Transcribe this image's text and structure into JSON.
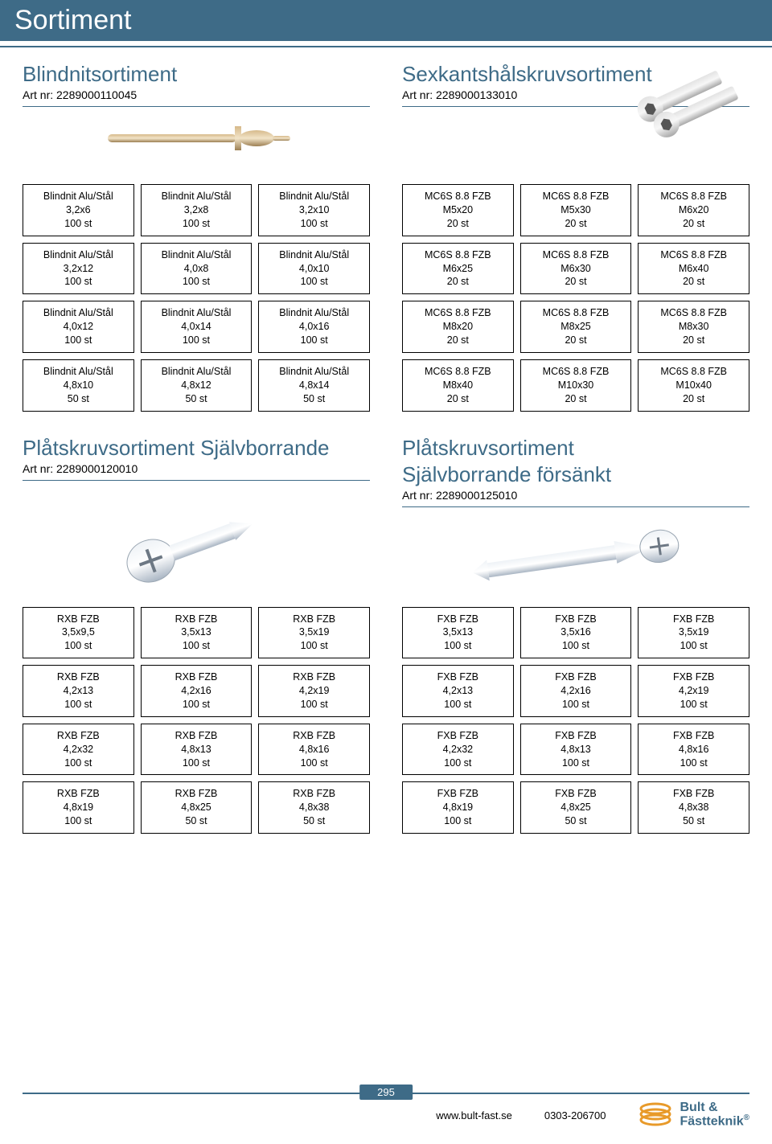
{
  "header": {
    "title": "Sortiment"
  },
  "page_number": "295",
  "footer": {
    "website": "www.bult-fast.se",
    "phone": "0303-206700",
    "logo_line1": "Bult &",
    "logo_line2": "Fästteknik"
  },
  "colors": {
    "brand": "#3e6b87",
    "border": "#000000"
  },
  "sections": {
    "blindnit": {
      "title": "Blindnitsortiment",
      "artnr": "Art nr: 2289000110045",
      "cells": [
        [
          "Blindnit Alu/Stål",
          "3,2x6",
          "100 st"
        ],
        [
          "Blindnit Alu/Stål",
          "3,2x8",
          "100 st"
        ],
        [
          "Blindnit Alu/Stål",
          "3,2x10",
          "100 st"
        ],
        [
          "Blindnit Alu/Stål",
          "3,2x12",
          "100 st"
        ],
        [
          "Blindnit Alu/Stål",
          "4,0x8",
          "100 st"
        ],
        [
          "Blindnit Alu/Stål",
          "4,0x10",
          "100 st"
        ],
        [
          "Blindnit Alu/Stål",
          "4,0x12",
          "100 st"
        ],
        [
          "Blindnit Alu/Stål",
          "4,0x14",
          "100 st"
        ],
        [
          "Blindnit Alu/Stål",
          "4,0x16",
          "100 st"
        ],
        [
          "Blindnit Alu/Stål",
          "4,8x10",
          "50 st"
        ],
        [
          "Blindnit Alu/Stål",
          "4,8x12",
          "50 st"
        ],
        [
          "Blindnit Alu/Stål",
          "4,8x14",
          "50 st"
        ]
      ]
    },
    "sexkant": {
      "title": "Sexkantshålskruvsortiment",
      "artnr": "Art nr: 2289000133010",
      "cells": [
        [
          "MC6S 8.8 FZB",
          "M5x20",
          "20 st"
        ],
        [
          "MC6S 8.8 FZB",
          "M5x30",
          "20 st"
        ],
        [
          "MC6S 8.8 FZB",
          "M6x20",
          "20 st"
        ],
        [
          "MC6S 8.8 FZB",
          "M6x25",
          "20 st"
        ],
        [
          "MC6S 8.8 FZB",
          "M6x30",
          "20 st"
        ],
        [
          "MC6S 8.8 FZB",
          "M6x40",
          "20 st"
        ],
        [
          "MC6S 8.8 FZB",
          "M8x20",
          "20 st"
        ],
        [
          "MC6S 8.8 FZB",
          "M8x25",
          "20 st"
        ],
        [
          "MC6S 8.8 FZB",
          "M8x30",
          "20 st"
        ],
        [
          "MC6S 8.8 FZB",
          "M8x40",
          "20 st"
        ],
        [
          "MC6S 8.8 FZB",
          "M10x30",
          "20 st"
        ],
        [
          "MC6S 8.8 FZB",
          "M10x40",
          "20 st"
        ]
      ]
    },
    "platskruv": {
      "title": "Plåtskruvsortiment Självborrande",
      "artnr": "Art nr: 2289000120010",
      "cells": [
        [
          "RXB FZB",
          "3,5x9,5",
          "100 st"
        ],
        [
          "RXB FZB",
          "3,5x13",
          "100 st"
        ],
        [
          "RXB FZB",
          "3,5x19",
          "100 st"
        ],
        [
          "RXB FZB",
          "4,2x13",
          "100 st"
        ],
        [
          "RXB FZB",
          "4,2x16",
          "100 st"
        ],
        [
          "RXB FZB",
          "4,2x19",
          "100 st"
        ],
        [
          "RXB FZB",
          "4,2x32",
          "100 st"
        ],
        [
          "RXB FZB",
          "4,8x13",
          "100 st"
        ],
        [
          "RXB FZB",
          "4,8x16",
          "100 st"
        ],
        [
          "RXB FZB",
          "4,8x19",
          "100 st"
        ],
        [
          "RXB FZB",
          "4,8x25",
          "50 st"
        ],
        [
          "RXB FZB",
          "4,8x38",
          "50 st"
        ]
      ]
    },
    "platskruv_forsankt": {
      "title_line1": "Plåtskruvsortiment",
      "title_line2": "Självborrande försänkt",
      "artnr": "Art nr: 2289000125010",
      "cells": [
        [
          "FXB FZB",
          "3,5x13",
          "100 st"
        ],
        [
          "FXB FZB",
          "3,5x16",
          "100 st"
        ],
        [
          "FXB FZB",
          "3,5x19",
          "100 st"
        ],
        [
          "FXB FZB",
          "4,2x13",
          "100 st"
        ],
        [
          "FXB FZB",
          "4,2x16",
          "100 st"
        ],
        [
          "FXB FZB",
          "4,2x19",
          "100 st"
        ],
        [
          "FXB FZB",
          "4,2x32",
          "100 st"
        ],
        [
          "FXB FZB",
          "4,8x13",
          "100 st"
        ],
        [
          "FXB FZB",
          "4,8x16",
          "100 st"
        ],
        [
          "FXB FZB",
          "4,8x19",
          "100 st"
        ],
        [
          "FXB FZB",
          "4,8x25",
          "50 st"
        ],
        [
          "FXB FZB",
          "4,8x38",
          "50 st"
        ]
      ]
    }
  }
}
